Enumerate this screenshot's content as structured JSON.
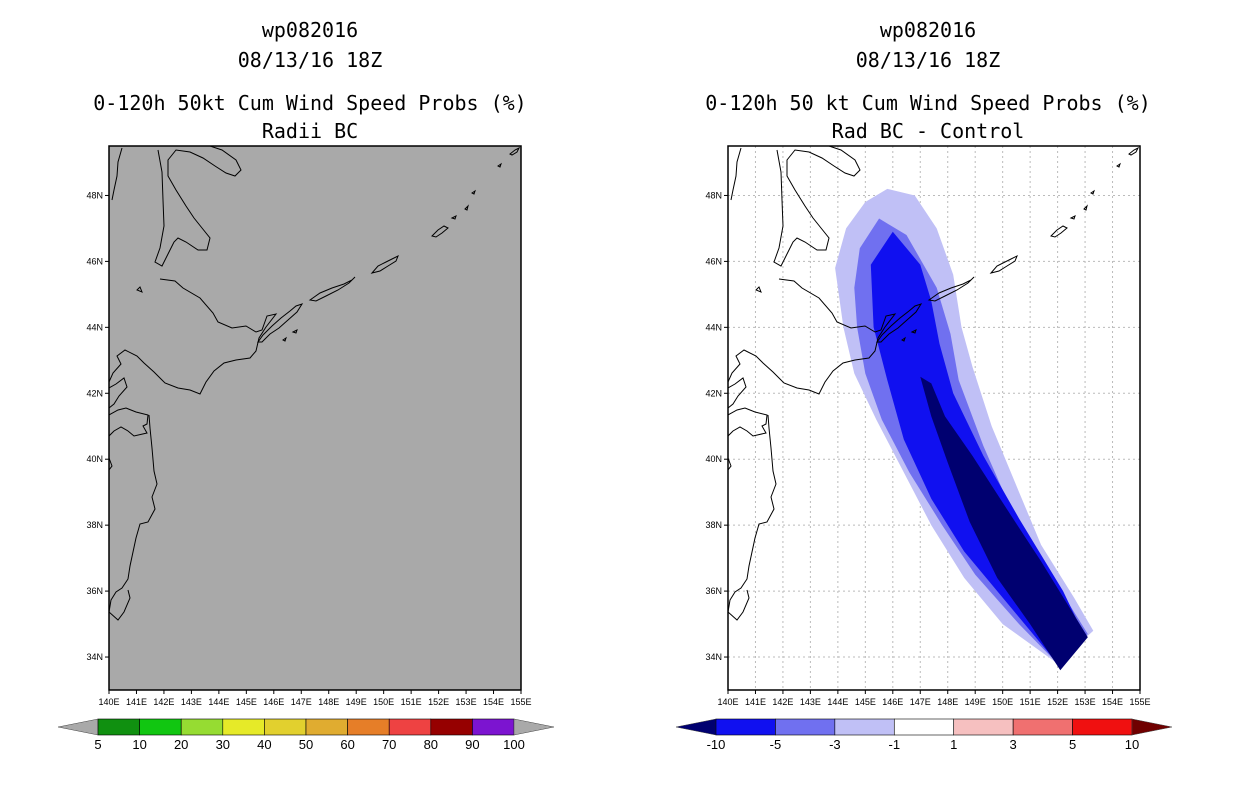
{
  "chart_data": [
    {
      "type": "map-contour",
      "storm_id": "wp082016",
      "datetime": "08/13/16 18Z",
      "title": "0-120h 50kt Cum Wind Speed Probs (%)",
      "subtitle": "Radii BC",
      "x_ticks": [
        "140E",
        "141E",
        "142E",
        "143E",
        "144E",
        "145E",
        "146E",
        "147E",
        "148E",
        "149E",
        "150E",
        "151E",
        "152E",
        "153E",
        "154E",
        "155E"
      ],
      "y_ticks": [
        "48N",
        "46N",
        "44N",
        "42N",
        "40N",
        "38N",
        "36N",
        "34N"
      ],
      "lon_range": [
        140,
        155
      ],
      "lat_range": [
        33.0,
        49.5
      ],
      "gridlines": false,
      "background_color": "#a9a9a9",
      "colorbar": {
        "labels": [
          "5",
          "10",
          "20",
          "30",
          "40",
          "50",
          "60",
          "70",
          "80",
          "90",
          "100"
        ],
        "colors": [
          "#109010",
          "#11c611",
          "#96dc32",
          "#e6ea28",
          "#e2d02e",
          "#e0ac30",
          "#e67e28",
          "#ee4242",
          "#960000",
          "#7c14d0"
        ],
        "under_color": "#a9a9a9",
        "over_color": "#a9a9a9"
      }
    },
    {
      "type": "map-contour",
      "storm_id": "wp082016",
      "datetime": "08/13/16 18Z",
      "title": "0-120h 50 kt Cum Wind Speed Probs (%)",
      "subtitle": "Rad BC - Control",
      "x_ticks": [
        "140E",
        "141E",
        "142E",
        "143E",
        "144E",
        "145E",
        "146E",
        "147E",
        "148E",
        "149E",
        "150E",
        "151E",
        "152E",
        "153E",
        "154E",
        "155E"
      ],
      "y_ticks": [
        "48N",
        "46N",
        "44N",
        "42N",
        "40N",
        "38N",
        "36N",
        "34N"
      ],
      "lon_range": [
        140,
        155
      ],
      "lat_range": [
        33.0,
        49.5
      ],
      "gridlines": true,
      "background_color": "#ffffff",
      "colorbar": {
        "labels": [
          "-10",
          "-5",
          "-3",
          "-1",
          "1",
          "3",
          "5",
          "10"
        ],
        "colors": [
          "#1010f0",
          "#7070f0",
          "#c0c0f6",
          "#ffffff",
          "#f6c0c0",
          "#f07070",
          "#f01010"
        ],
        "under_color": "#000070",
        "over_color": "#700000"
      },
      "contours": [
        {
          "level": "-1 to -3",
          "color": "#c0c0f6",
          "lonlat": [
            [
              145.0,
              47.8
            ],
            [
              145.8,
              48.2
            ],
            [
              146.8,
              48.0
            ],
            [
              147.6,
              47.0
            ],
            [
              148.2,
              45.6
            ],
            [
              148.5,
              44.0
            ],
            [
              148.9,
              42.8
            ],
            [
              149.6,
              41.0
            ],
            [
              150.6,
              39.0
            ],
            [
              151.4,
              37.4
            ],
            [
              152.6,
              35.8
            ],
            [
              153.3,
              34.8
            ],
            [
              152.0,
              33.8
            ],
            [
              150.0,
              35.0
            ],
            [
              148.6,
              36.4
            ],
            [
              147.4,
              38.0
            ],
            [
              146.4,
              39.6
            ],
            [
              145.4,
              41.2
            ],
            [
              144.6,
              42.6
            ],
            [
              144.2,
              44.0
            ],
            [
              143.9,
              45.8
            ],
            [
              144.3,
              47.0
            ]
          ]
        },
        {
          "level": "-3 to -5",
          "color": "#7070f0",
          "lonlat": [
            [
              144.8,
              46.4
            ],
            [
              145.5,
              47.3
            ],
            [
              146.5,
              46.8
            ],
            [
              147.6,
              45.2
            ],
            [
              148.1,
              43.8
            ],
            [
              148.4,
              42.4
            ],
            [
              149.3,
              40.4
            ],
            [
              150.4,
              38.3
            ],
            [
              151.6,
              36.7
            ],
            [
              153.1,
              34.7
            ],
            [
              152.0,
              33.8
            ],
            [
              150.6,
              35.0
            ],
            [
              149.0,
              36.5
            ],
            [
              147.8,
              38.0
            ],
            [
              146.6,
              39.6
            ],
            [
              145.6,
              41.2
            ],
            [
              145.0,
              42.6
            ],
            [
              144.7,
              44.0
            ],
            [
              144.6,
              45.2
            ]
          ]
        },
        {
          "level": "-5 to -10",
          "color": "#1010f0",
          "lonlat": [
            [
              145.2,
              45.9
            ],
            [
              146.0,
              46.9
            ],
            [
              147.0,
              45.9
            ],
            [
              147.4,
              44.8
            ],
            [
              147.7,
              43.5
            ],
            [
              148.2,
              42.0
            ],
            [
              149.3,
              40.1
            ],
            [
              150.6,
              38.2
            ],
            [
              152.2,
              36.0
            ],
            [
              153.0,
              34.6
            ],
            [
              152.0,
              33.8
            ],
            [
              150.4,
              35.4
            ],
            [
              148.6,
              37.2
            ],
            [
              147.4,
              38.8
            ],
            [
              146.4,
              40.6
            ],
            [
              145.8,
              42.4
            ],
            [
              145.3,
              44.0
            ]
          ]
        },
        {
          "level": "< -10",
          "color": "#000070",
          "lonlat": [
            [
              147.0,
              42.5
            ],
            [
              147.4,
              42.3
            ],
            [
              147.9,
              41.3
            ],
            [
              148.9,
              40.1
            ],
            [
              150.3,
              38.3
            ],
            [
              151.4,
              36.9
            ],
            [
              153.1,
              34.6
            ],
            [
              152.1,
              33.6
            ],
            [
              151.0,
              35.0
            ],
            [
              149.8,
              36.4
            ],
            [
              148.8,
              38.1
            ],
            [
              148.0,
              39.9
            ],
            [
              147.4,
              41.3
            ]
          ]
        }
      ]
    }
  ]
}
